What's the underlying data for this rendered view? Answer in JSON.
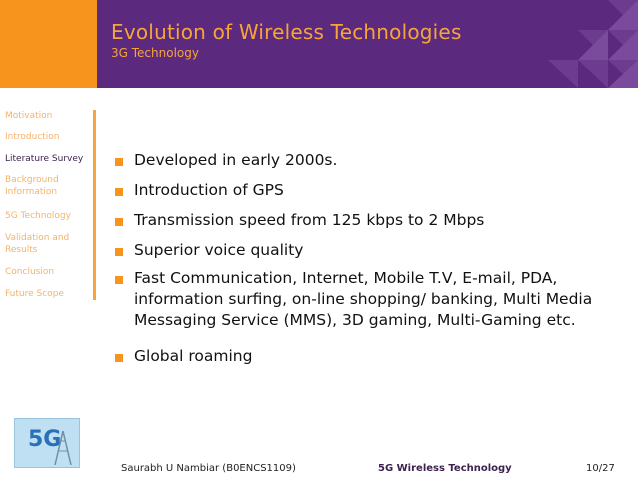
{
  "header": {
    "title": "Evolution of Wireless Technologies",
    "subtitle": "3G Technology"
  },
  "sidebar": {
    "items": [
      {
        "label": "Motivation"
      },
      {
        "label": "Introduction"
      },
      {
        "label": "Literature Survey"
      },
      {
        "label": "Background Information"
      },
      {
        "label": "5G Technology"
      },
      {
        "label": "Validation and Results"
      },
      {
        "label": "Conclusion"
      },
      {
        "label": "Future Scope"
      }
    ],
    "logo_text": "5G"
  },
  "content": {
    "bullets": [
      {
        "text": "Developed in early 2000s."
      },
      {
        "text": "Introduction of GPS"
      },
      {
        "text": "Transmission speed from 125 kbps to 2 Mbps"
      },
      {
        "text": "Superior voice quality"
      },
      {
        "text": "Fast Communication, Internet, Mobile T.V, E-mail, PDA, information surfing, on-line shopping/ banking, Multi Media Messaging Service (MMS), 3D gaming, Multi-Gaming etc."
      },
      {
        "text": "Global roaming"
      }
    ]
  },
  "footer": {
    "author": "Saurabh U Nambiar (B0ENCS1109)",
    "short_title": "5G Wireless Technology",
    "page": "10/27"
  },
  "colors": {
    "header_bg": "#5b2a7e",
    "accent": "#f7941d",
    "title_text": "#f7a53a"
  }
}
